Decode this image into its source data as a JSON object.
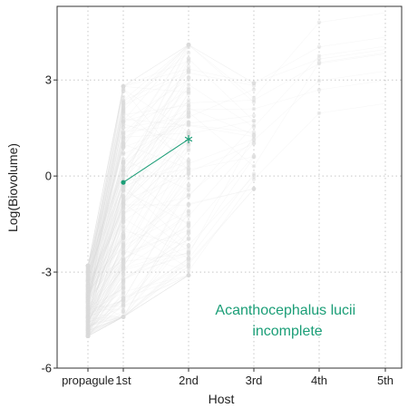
{
  "chart_data": {
    "type": "scatter",
    "title": "",
    "xlabel": "Host",
    "ylabel": "Log(Biovolume)",
    "categories": [
      "propagule",
      "1st",
      "2nd",
      "3rd",
      "4th",
      "5th"
    ],
    "y_ticks": [
      -6,
      -3,
      0,
      3
    ],
    "ylim": [
      -6,
      5.3
    ],
    "grid": true,
    "highlight_color": "#1b9e77",
    "background_color": "#d9d9d9",
    "annotation": [
      "Acanthocephalus lucii",
      "incomplete"
    ],
    "series": [
      {
        "points": [
          {
            "host": "1st",
            "value": -0.2
          },
          {
            "host": "2nd",
            "value": 1.15
          }
        ]
      }
    ],
    "background_ranges": [
      {
        "host": "propagule",
        "min": -5.0,
        "max": -2.8
      },
      {
        "host": "1st",
        "min": -4.4,
        "max": 2.8
      },
      {
        "host": "2nd",
        "min": -3.1,
        "max": 4.1
      },
      {
        "host": "3rd",
        "min": -0.4,
        "max": 2.9
      },
      {
        "host": "4th",
        "min": 1.2,
        "max": 4.8
      }
    ]
  }
}
